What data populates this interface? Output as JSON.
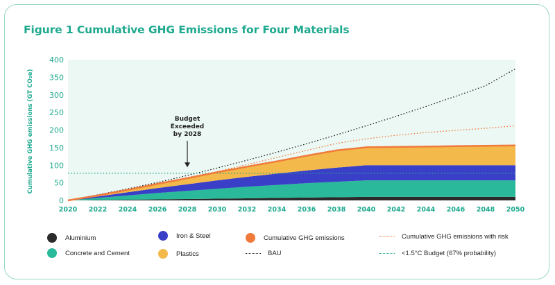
{
  "chart_data": {
    "type": "area",
    "title": "Figure 1 Cumulative GHG Emissions for Four Materials",
    "ylabel": "Cumulative GHG emissions (GT CO₂e)",
    "xlabel": "",
    "x": [
      2020,
      2022,
      2024,
      2026,
      2028,
      2030,
      2032,
      2034,
      2036,
      2038,
      2040,
      2042,
      2044,
      2046,
      2048,
      2050
    ],
    "xlim": [
      2020,
      2050
    ],
    "ylim": [
      0,
      400
    ],
    "yticks": [
      "0",
      "50",
      "100",
      "150",
      "200",
      "250",
      "300",
      "350",
      "400"
    ],
    "xticks": [
      "2020",
      "2022",
      "2024",
      "2026",
      "2028",
      "2030",
      "2032",
      "2034",
      "2036",
      "2038",
      "2040",
      "2042",
      "2044",
      "2046",
      "2048",
      "2050"
    ],
    "stacked_series": [
      {
        "name": "Aluminium",
        "color": "#2b2b2b",
        "values": [
          0,
          1,
          2,
          3,
          4,
          5,
          6,
          7,
          8,
          9,
          10,
          10,
          10,
          10,
          10,
          10
        ]
      },
      {
        "name": "Concrete and Cement",
        "color": "#2ab99a",
        "values": [
          0,
          6,
          12,
          18,
          23,
          28,
          33,
          37,
          41,
          44,
          47,
          47,
          47,
          47,
          47,
          47
        ]
      },
      {
        "name": "Iron & Steel",
        "color": "#3a3fc7",
        "values": [
          0,
          4,
          9,
          14,
          19,
          24,
          28,
          32,
          36,
          40,
          43,
          43,
          43,
          43,
          43,
          43
        ]
      },
      {
        "name": "Plastics",
        "color": "#f3b94b",
        "values": [
          0,
          3,
          7,
          12,
          17,
          23,
          29,
          35,
          42,
          49,
          51,
          52,
          53,
          54,
          55,
          56
        ]
      }
    ],
    "lines": [
      {
        "name": "BAU",
        "style": "dotted",
        "color": "#222222",
        "values": [
          0,
          16,
          33,
          51,
          71,
          92,
          114,
          137,
          161,
          186,
          212,
          239,
          267,
          296,
          326,
          374
        ]
      },
      {
        "name": "Cumulative GHG emissions with risk",
        "style": "dotted",
        "color": "#f07a3c",
        "values": [
          0,
          14,
          30,
          47,
          65,
          82,
          102,
          122,
          142,
          162,
          175,
          185,
          193,
          199,
          205,
          212
        ]
      },
      {
        "name": "<1.5°C Budget (67% probability)",
        "style": "dotted",
        "color": "#1fa98f",
        "values": [
          77,
          77,
          77,
          77,
          77,
          77,
          77,
          77,
          77,
          77,
          77,
          77,
          77,
          77,
          77,
          77
        ]
      },
      {
        "name": "Cumulative GHG emissions",
        "style": "solid",
        "color": "#f07a3c",
        "values": [
          0,
          14,
          30,
          47,
          63,
          80,
          96,
          111,
          127,
          142,
          151,
          152,
          153,
          154,
          155,
          156
        ]
      }
    ],
    "annotation": {
      "lines": [
        "Budget",
        "Exceeded",
        "by 2028"
      ],
      "x": 2028,
      "arrow_to_y": 92
    },
    "legend": [
      {
        "name": "Aluminium",
        "marker": "dot",
        "color": "#2b2b2b"
      },
      {
        "name": "Iron & Steel",
        "marker": "dot",
        "color": "#3a3fc7"
      },
      {
        "name": "Cumulative GHG emissions",
        "marker": "dot",
        "color": "#f07a3c"
      },
      {
        "name": "Cumulative GHG emissions with risk",
        "marker": "dotted-line",
        "color": "#f07a3c"
      },
      {
        "name": "Concrete and Cement",
        "marker": "dot",
        "color": "#2ab99a"
      },
      {
        "name": "Plastics",
        "marker": "dot",
        "color": "#f3b94b"
      },
      {
        "name": "BAU",
        "marker": "dotted-line",
        "color": "#222222"
      },
      {
        "name": "<1.5°C Budget (67% probability)",
        "marker": "dotted-line",
        "color": "#1fa98f"
      }
    ],
    "plot_background": "#ecf8f4"
  }
}
